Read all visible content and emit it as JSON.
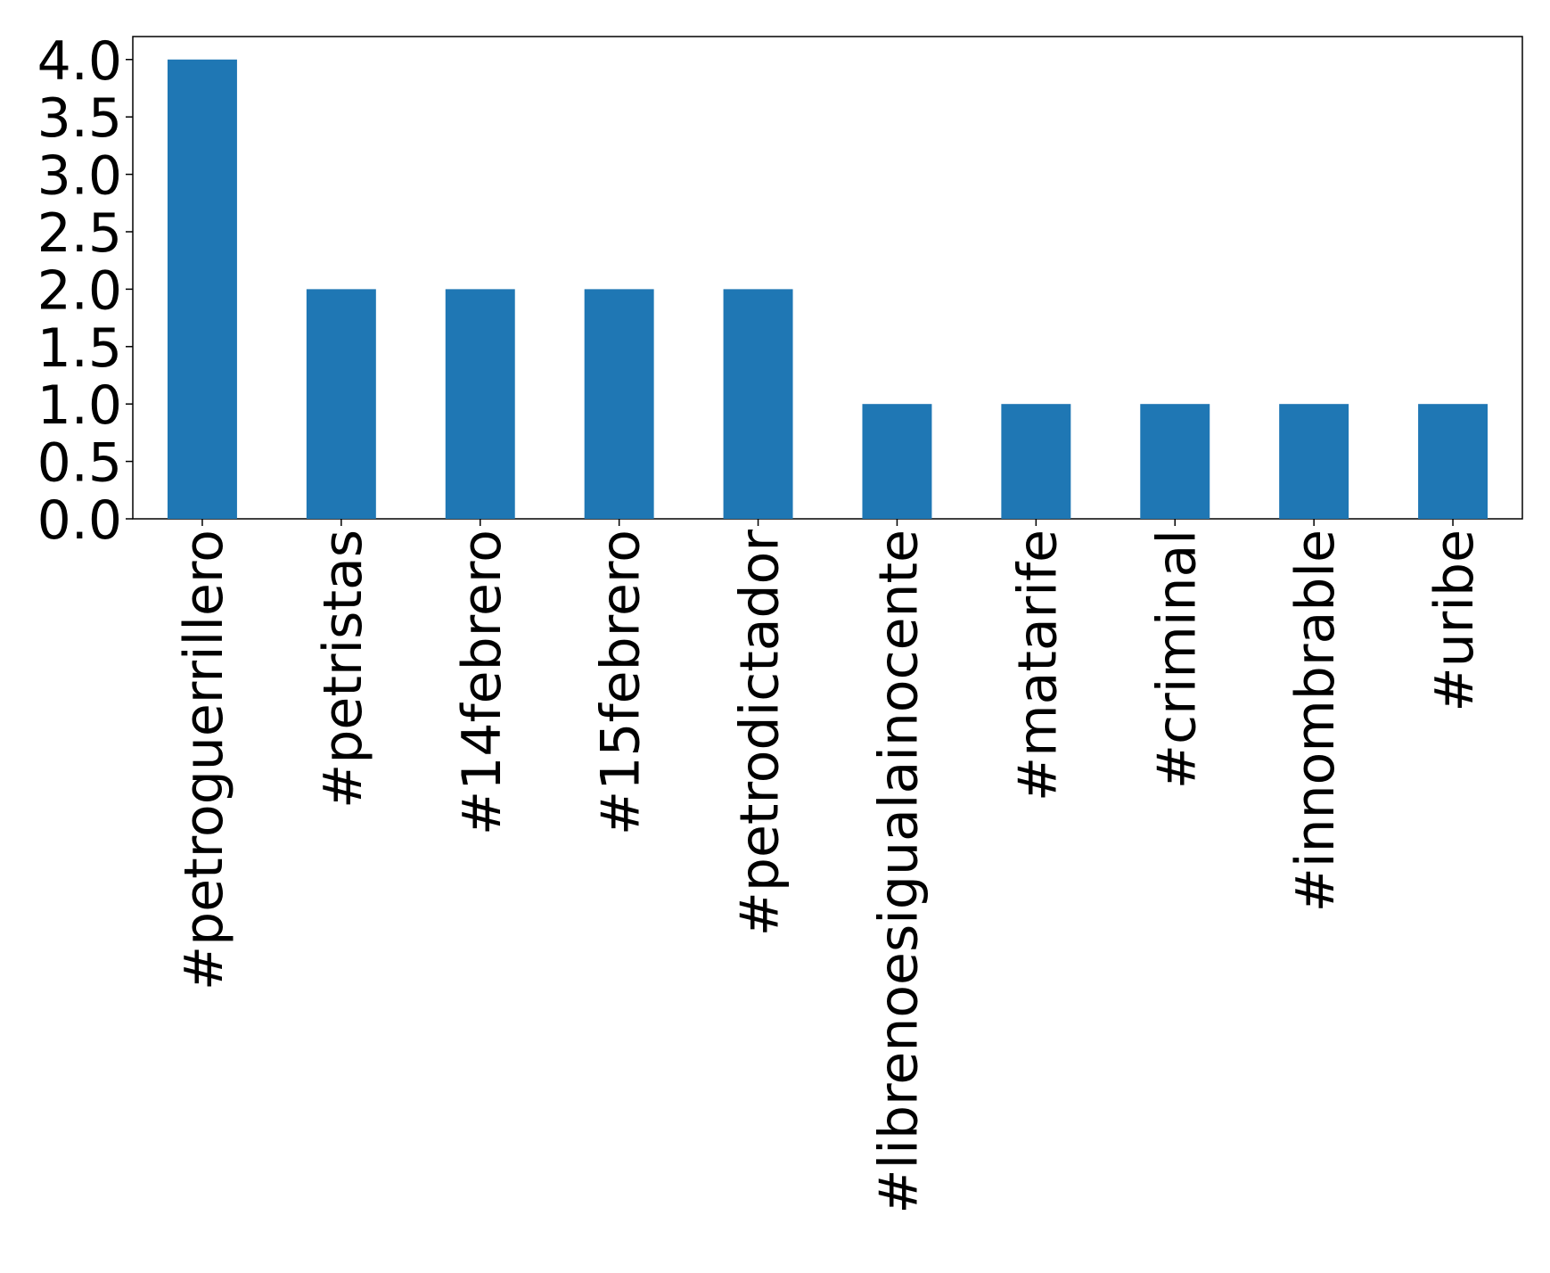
{
  "chart_data": {
    "type": "bar",
    "categories": [
      "#petroguerrillero",
      "#petristas",
      "#14febrero",
      "#15febrero",
      "#petrodictador",
      "#librenoesigualainocente",
      "#matarife",
      "#criminal",
      "#innombrable",
      "#uribe"
    ],
    "values": [
      4,
      2,
      2,
      2,
      2,
      1,
      1,
      1,
      1,
      1
    ],
    "color": "#1f77b4",
    "ylim": [
      0,
      4.2
    ],
    "yticks": [
      {
        "value": 0,
        "label": "0.0"
      },
      {
        "value": 0.5,
        "label": "0.5"
      },
      {
        "value": 1,
        "label": "1.0"
      },
      {
        "value": 1.5,
        "label": "1.5"
      },
      {
        "value": 2,
        "label": "2.0"
      },
      {
        "value": 2.5,
        "label": "2.5"
      },
      {
        "value": 3,
        "label": "3.0"
      },
      {
        "value": 3.5,
        "label": "3.5"
      },
      {
        "value": 4,
        "label": "4.0"
      }
    ],
    "grid": false
  }
}
